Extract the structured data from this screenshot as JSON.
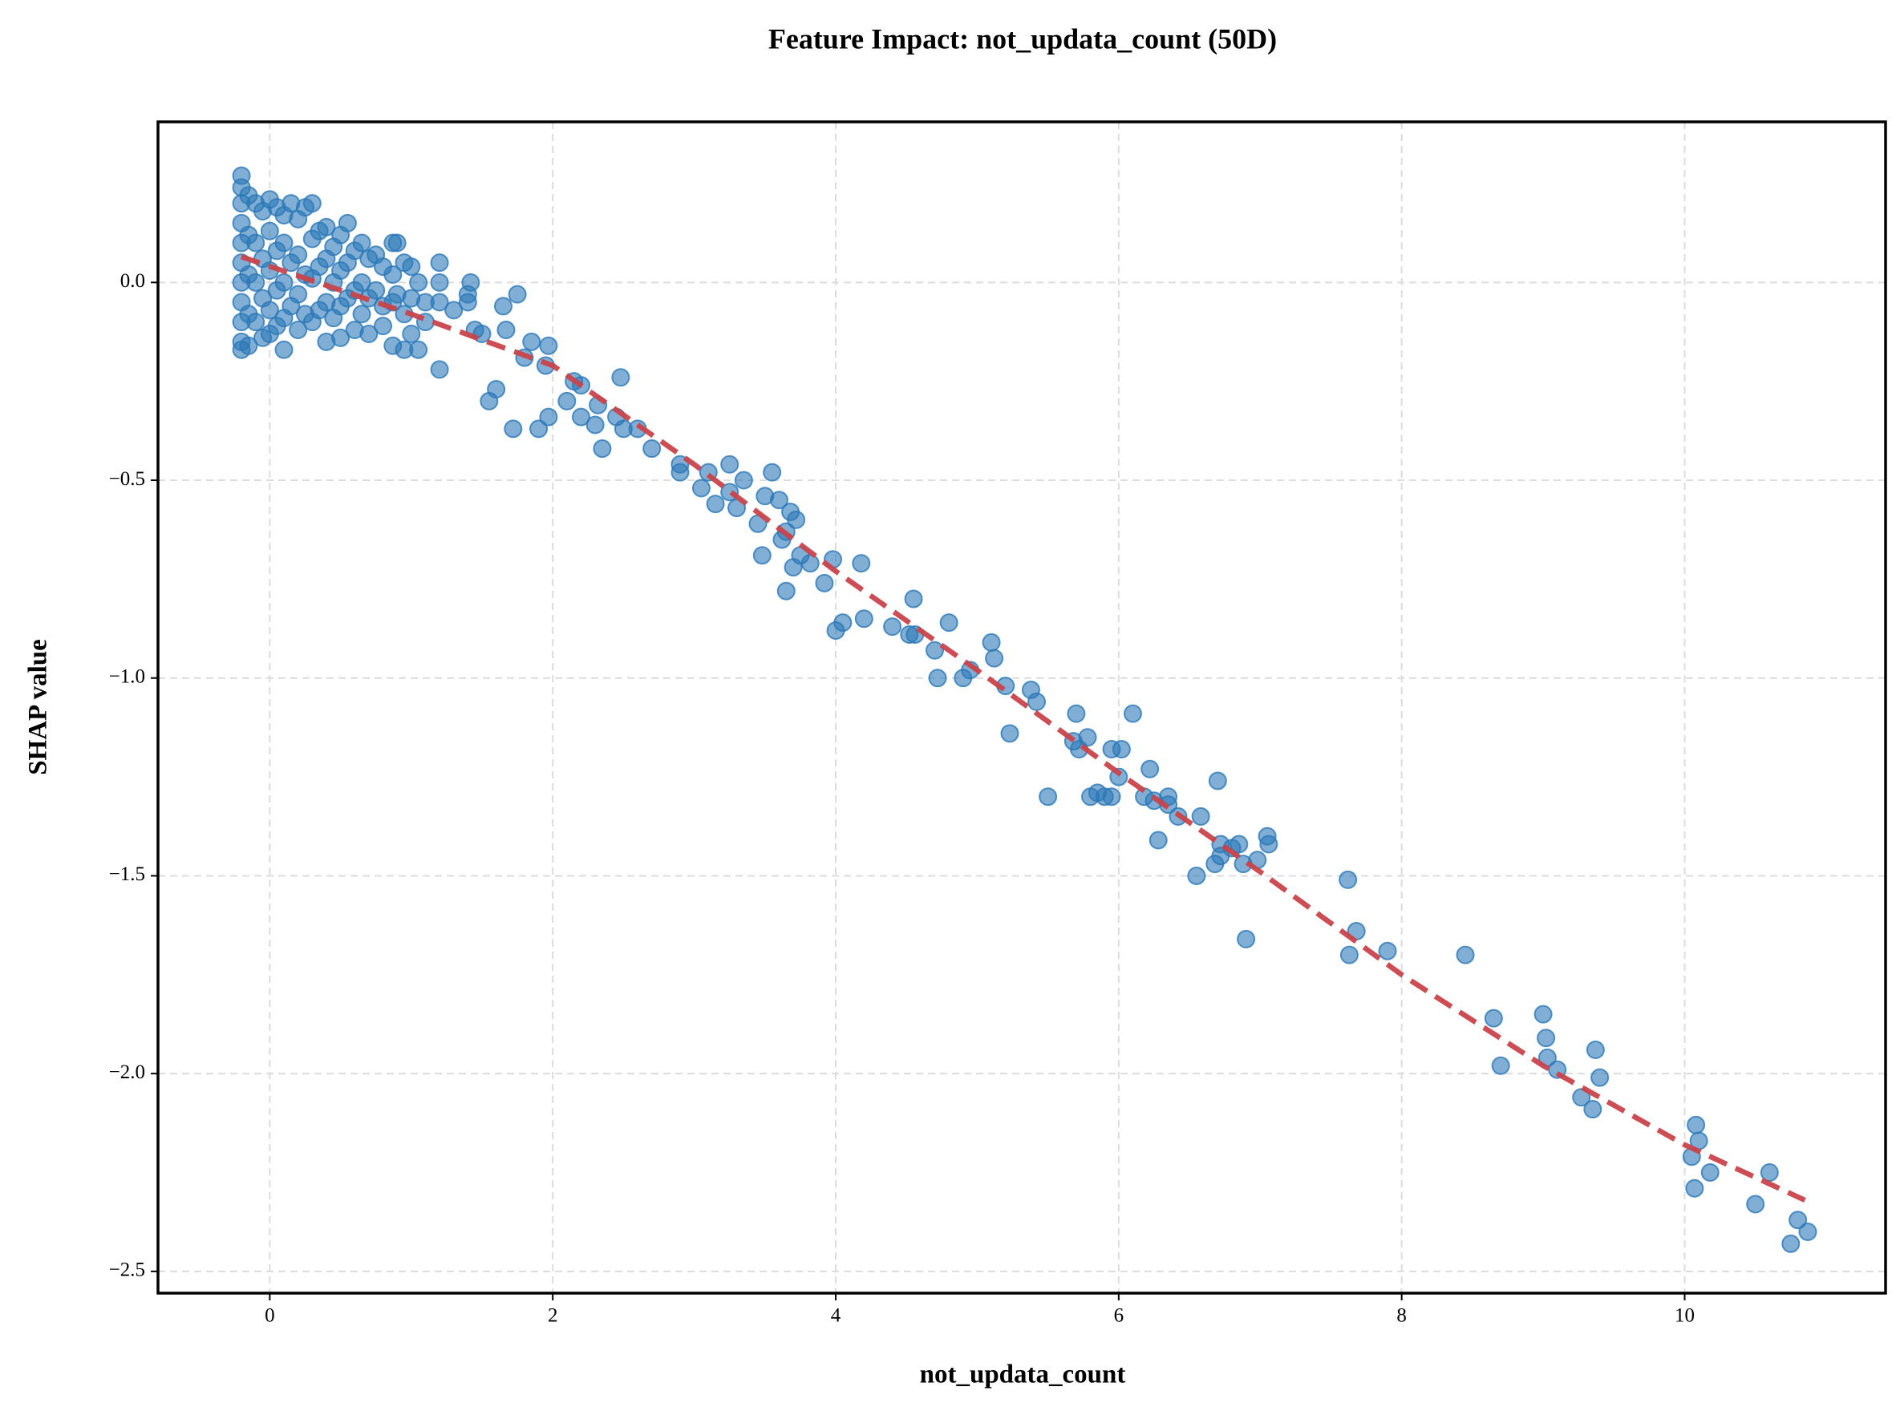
{
  "chart_data": {
    "type": "scatter",
    "title": "Feature Impact: not_updata_count (50D)",
    "xlabel": "not_updata_count",
    "ylabel": "SHAP value",
    "xlim": [
      -0.79,
      11.42
    ],
    "ylim": [
      -2.555,
      0.406
    ],
    "xticks": [
      0,
      2,
      4,
      6,
      8,
      10
    ],
    "yticks": [
      {
        "value": -2.5,
        "label": "−2.5"
      },
      {
        "value": -2.0,
        "label": "−2.0"
      },
      {
        "value": -1.5,
        "label": "−1.5"
      },
      {
        "value": -1.0,
        "label": "−1.0"
      },
      {
        "value": -0.5,
        "label": "−0.5"
      },
      {
        "value": 0,
        "label": "0.0"
      }
    ],
    "grid": true,
    "series": [
      {
        "type": "scatter",
        "color": "#2b78b8",
        "x": [
          -0.2,
          -0.2,
          -0.2,
          -0.2,
          -0.2,
          -0.2,
          -0.2,
          -0.2,
          -0.2,
          -0.2,
          -0.2,
          -0.15,
          -0.15,
          -0.15,
          -0.15,
          -0.15,
          -0.1,
          -0.1,
          -0.1,
          -0.1,
          -0.05,
          -0.05,
          -0.05,
          -0.05,
          0.0,
          0.0,
          0.0,
          0.0,
          0.0,
          0.05,
          0.05,
          0.05,
          0.05,
          0.1,
          0.1,
          0.1,
          0.1,
          0.1,
          0.15,
          0.15,
          0.15,
          0.2,
          0.2,
          0.2,
          0.2,
          0.25,
          0.25,
          0.25,
          0.3,
          0.3,
          0.3,
          0.3,
          0.35,
          0.35,
          0.35,
          0.4,
          0.4,
          0.4,
          0.4,
          0.45,
          0.45,
          0.45,
          0.5,
          0.5,
          0.5,
          0.5,
          0.55,
          0.55,
          0.55,
          0.6,
          0.6,
          0.6,
          0.65,
          0.65,
          0.65,
          0.7,
          0.7,
          0.7,
          0.75,
          0.75,
          0.8,
          0.8,
          0.8,
          0.87,
          0.87,
          0.87,
          0.87,
          0.9,
          0.9,
          0.95,
          0.95,
          0.95,
          1.0,
          1.0,
          1.0,
          1.05,
          1.05,
          1.1,
          1.1,
          1.2,
          1.2,
          1.2,
          1.2,
          1.3,
          1.4,
          1.42,
          1.4,
          1.45,
          1.5,
          1.55,
          1.6,
          1.65,
          1.67,
          1.75,
          1.72,
          1.8,
          1.85,
          1.9,
          1.95,
          1.97,
          1.97,
          2.1,
          2.15,
          2.2,
          2.2,
          2.3,
          2.32,
          2.35,
          2.45,
          2.48,
          2.5,
          2.6,
          2.7,
          2.9,
          2.9,
          3.05,
          3.1,
          3.15,
          3.25,
          3.25,
          3.3,
          3.35,
          3.45,
          3.5,
          3.48,
          3.55,
          3.6,
          3.62,
          3.65,
          3.65,
          3.68,
          3.7,
          3.72,
          3.75,
          3.82,
          3.92,
          3.98,
          4.0,
          4.05,
          4.2,
          4.18,
          4.4,
          4.52,
          4.55,
          4.56,
          4.7,
          4.72,
          4.8,
          4.9,
          4.95,
          5.1,
          5.12,
          5.2,
          5.23,
          5.38,
          5.42,
          5.5,
          5.68,
          5.7,
          5.72,
          5.78,
          5.8,
          5.85,
          5.9,
          5.95,
          5.95,
          6.0,
          6.02,
          6.1,
          6.18,
          6.22,
          6.25,
          6.28,
          6.35,
          6.35,
          6.42,
          6.55,
          6.58,
          6.68,
          6.7,
          6.72,
          6.72,
          6.8,
          6.85,
          6.88,
          6.9,
          6.98,
          7.05,
          7.06,
          7.62,
          7.63,
          7.68,
          7.9,
          8.45,
          8.65,
          8.7,
          9.0,
          9.02,
          9.03,
          9.1,
          9.27,
          9.35,
          9.37,
          9.4,
          10.05,
          10.07,
          10.08,
          10.1,
          10.18,
          10.5,
          10.6,
          10.75,
          10.8,
          10.87
        ],
        "values": [
          0.27,
          0.24,
          0.2,
          0.15,
          0.1,
          0.05,
          0.0,
          -0.05,
          -0.1,
          -0.15,
          -0.17,
          0.22,
          0.12,
          0.02,
          -0.08,
          -0.16,
          0.2,
          0.1,
          0.0,
          -0.1,
          0.18,
          0.06,
          -0.04,
          -0.14,
          0.21,
          0.13,
          0.03,
          -0.07,
          -0.13,
          0.19,
          0.08,
          -0.02,
          -0.11,
          0.17,
          0.1,
          0.0,
          -0.09,
          -0.17,
          0.2,
          0.05,
          -0.06,
          0.16,
          0.07,
          -0.03,
          -0.12,
          0.19,
          0.02,
          -0.08,
          0.2,
          0.11,
          0.01,
          -0.1,
          0.13,
          0.04,
          -0.07,
          0.14,
          0.06,
          -0.05,
          -0.15,
          0.09,
          0.0,
          -0.09,
          0.12,
          0.03,
          -0.06,
          -0.14,
          0.15,
          0.05,
          -0.04,
          0.08,
          -0.02,
          -0.12,
          0.1,
          0.0,
          -0.08,
          0.06,
          -0.04,
          -0.13,
          0.07,
          -0.02,
          0.04,
          -0.06,
          -0.11,
          0.1,
          0.02,
          -0.05,
          -0.16,
          0.1,
          -0.03,
          0.05,
          -0.08,
          -0.17,
          0.04,
          -0.04,
          -0.13,
          0.0,
          -0.17,
          -0.05,
          -0.1,
          0.05,
          0.0,
          -0.05,
          -0.22,
          -0.07,
          -0.03,
          0.0,
          -0.05,
          -0.12,
          -0.13,
          -0.3,
          -0.27,
          -0.06,
          -0.12,
          -0.03,
          -0.37,
          -0.19,
          -0.15,
          -0.37,
          -0.21,
          -0.16,
          -0.34,
          -0.3,
          -0.25,
          -0.26,
          -0.34,
          -0.36,
          -0.31,
          -0.42,
          -0.34,
          -0.24,
          -0.37,
          -0.37,
          -0.42,
          -0.46,
          -0.48,
          -0.52,
          -0.48,
          -0.56,
          -0.46,
          -0.53,
          -0.57,
          -0.5,
          -0.61,
          -0.54,
          -0.69,
          -0.48,
          -0.55,
          -0.65,
          -0.63,
          -0.78,
          -0.58,
          -0.72,
          -0.6,
          -0.69,
          -0.71,
          -0.76,
          -0.7,
          -0.88,
          -0.86,
          -0.85,
          -0.71,
          -0.87,
          -0.89,
          -0.8,
          -0.89,
          -0.93,
          -1.0,
          -0.86,
          -1.0,
          -0.98,
          -0.91,
          -0.95,
          -1.02,
          -1.14,
          -1.03,
          -1.06,
          -1.3,
          -1.16,
          -1.09,
          -1.18,
          -1.15,
          -1.3,
          -1.29,
          -1.3,
          -1.18,
          -1.3,
          -1.25,
          -1.18,
          -1.09,
          -1.3,
          -1.23,
          -1.31,
          -1.41,
          -1.3,
          -1.32,
          -1.35,
          -1.5,
          -1.35,
          -1.47,
          -1.26,
          -1.42,
          -1.45,
          -1.43,
          -1.42,
          -1.47,
          -1.66,
          -1.46,
          -1.4,
          -1.42,
          -1.51,
          -1.7,
          -1.64,
          -1.69,
          -1.7,
          -1.86,
          -1.98,
          -1.85,
          -1.91,
          -1.96,
          -1.99,
          -2.06,
          -2.09,
          -1.94,
          -2.01,
          -2.21,
          -2.29,
          -2.13,
          -2.17,
          -2.25,
          -2.33,
          -2.25,
          -2.43,
          -2.37,
          -2.4
        ]
      },
      {
        "type": "line",
        "color": "#c9434a",
        "x": [
          -0.2,
          1,
          2,
          3,
          4,
          5,
          6,
          7,
          8,
          9,
          10,
          10.85
        ],
        "values": [
          0.065,
          -0.08,
          -0.21,
          -0.46,
          -0.73,
          -0.98,
          -1.24,
          -1.49,
          -1.75,
          -1.98,
          -2.18,
          -2.32
        ]
      }
    ]
  }
}
